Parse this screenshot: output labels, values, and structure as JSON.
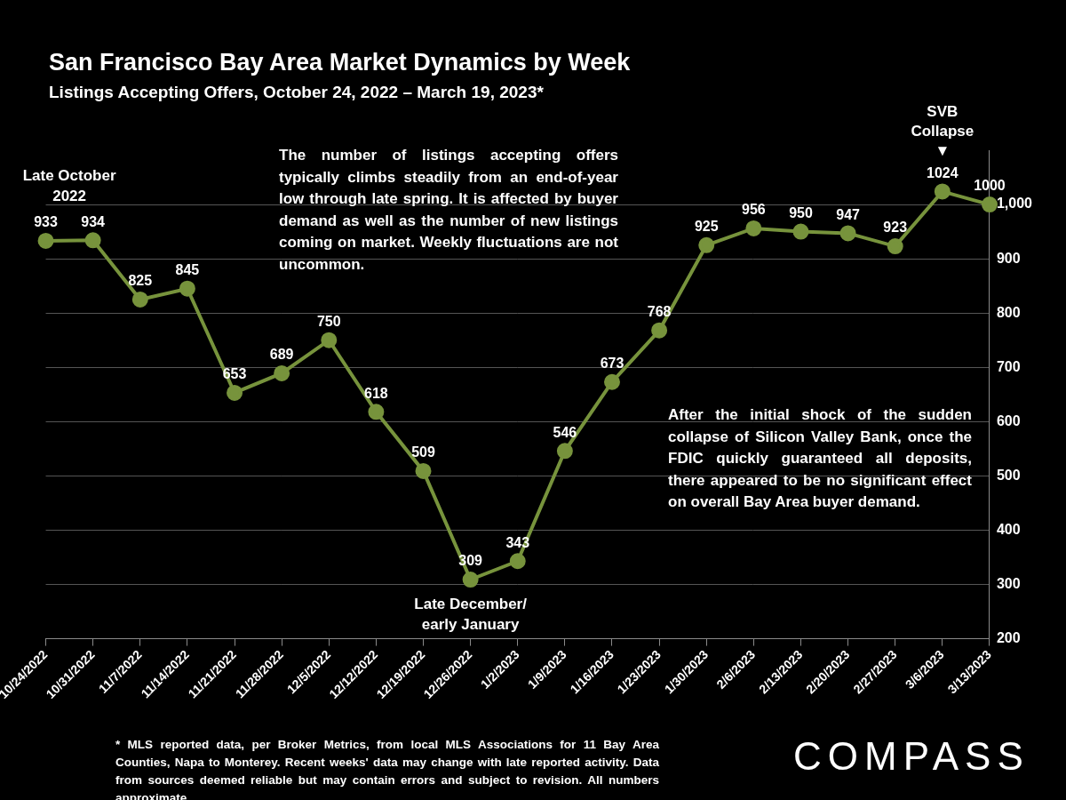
{
  "chart_data": {
    "type": "line",
    "title": "San Francisco Bay Area Market Dynamics by Week",
    "subtitle": "Listings Accepting Offers, October 24, 2022 – March 19, 2023*",
    "categories": [
      "10/24/2022",
      "10/31/2022",
      "11/7/2022",
      "11/14/2022",
      "11/21/2022",
      "11/28/2022",
      "12/5/2022",
      "12/12/2022",
      "12/19/2022",
      "12/26/2022",
      "1/2/2023",
      "1/9/2023",
      "1/16/2023",
      "1/23/2023",
      "1/30/2023",
      "2/6/2023",
      "2/13/2023",
      "2/20/2023",
      "2/27/2023",
      "3/6/2023",
      "3/13/2023"
    ],
    "values": [
      933,
      934,
      825,
      845,
      653,
      689,
      750,
      618,
      509,
      309,
      343,
      546,
      673,
      768,
      925,
      956,
      950,
      947,
      923,
      1024,
      1000
    ],
    "color": "#77933c",
    "marker": "circle",
    "ylim": [
      200,
      1100
    ],
    "yticks": [
      200,
      300,
      400,
      500,
      600,
      700,
      800,
      900,
      {
        "value": 1000,
        "label": "1,000"
      }
    ],
    "grid": true,
    "data_labels": true,
    "annotations": [
      "Late October 2022",
      "The number of listings accepting offers typically climbs steadily from an end-of-year low through late spring. It is affected by buyer demand as well as the number of new listings coming on market. Weekly fluctuations are not uncommon.",
      "Late December/ early January",
      "After the initial shock of the sudden collapse of Silicon Valley Bank, once the FDIC quickly guaranteed all deposits, there appeared to be no significant effect on overall Bay Area buyer demand.",
      "SVB Collapse ▼"
    ],
    "footnote": "* MLS reported data, per Broker Metrics, from local MLS Associations for 11 Bay Area Counties, Napa to Monterey. Recent weeks' data may change with late reported activity. Data from sources deemed reliable but may contain errors and subject to revision. All numbers approximate.",
    "logo": "COMPASS"
  }
}
